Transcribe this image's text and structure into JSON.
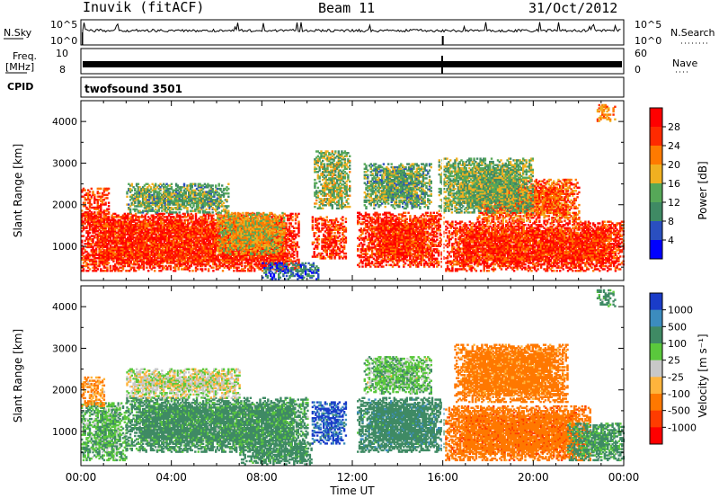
{
  "header": {
    "station": "Inuvik (fitACF)",
    "beam": "Beam 11",
    "date": "31/Oct/2012"
  },
  "noise_panel": {
    "left_label": "N.Sky",
    "right_label": "N.Search",
    "left_ticks": [
      "10^5",
      "10^0"
    ],
    "right_ticks": [
      "10^5",
      "10^0"
    ]
  },
  "freq_panel": {
    "left_label": "Freq.",
    "left_unit": "[MHz]",
    "right_label": "Nave",
    "left_ticks": [
      "10",
      "8"
    ],
    "right_ticks": [
      "60",
      "0"
    ]
  },
  "cpid": {
    "label": "CPID",
    "value": "twofsound 3501"
  },
  "power_panel": {
    "ylabel": "Slant Range [km]",
    "yticks": [
      "1000",
      "2000",
      "3000",
      "4000"
    ],
    "colorbar_label": "Power [dB]",
    "colorbar_ticks": [
      "4",
      "8",
      "12",
      "16",
      "20",
      "24",
      "28"
    ],
    "colorbar_colors": [
      "#0000ff",
      "#2a4fc0",
      "#3f8a64",
      "#56a858",
      "#f0b020",
      "#ff7a00",
      "#ff2a00",
      "#ff0000"
    ]
  },
  "velocity_panel": {
    "ylabel": "Slant Range [km]",
    "yticks": [
      "1000",
      "2000",
      "3000",
      "4000"
    ],
    "colorbar_label": "Velocity [m s⁻¹]",
    "colorbar_ticks": [
      "1000",
      "500",
      "100",
      "25",
      "-25",
      "-100",
      "-500",
      "-1000"
    ],
    "colorbar_colors": [
      "#1a3cc8",
      "#3c8cbe",
      "#3f8a64",
      "#5ac83c",
      "#c8c8c8",
      "#ffb43c",
      "#ff7800",
      "#ff3c00",
      "#ff0000"
    ]
  },
  "x_axis": {
    "ticks": [
      "00:00",
      "04:00",
      "08:00",
      "12:00",
      "16:00",
      "20:00",
      "00:00"
    ],
    "label": "Time UT"
  },
  "chart_data": [
    {
      "type": "heatmap",
      "title": "Power",
      "x_range_hours": [
        0,
        24
      ],
      "y_range_km": [
        180,
        4500
      ],
      "colorbar_range_db": [
        0,
        32
      ],
      "blobs": [
        {
          "t0": 0.0,
          "t1": 9.6,
          "r0": 400,
          "r1": 1800,
          "value": 27
        },
        {
          "t0": 0.0,
          "t1": 1.2,
          "r0": 1500,
          "r1": 2400,
          "value": 26
        },
        {
          "t0": 2.0,
          "t1": 6.5,
          "r0": 1800,
          "r1": 2500,
          "value": 13
        },
        {
          "t0": 6.0,
          "t1": 9.0,
          "r0": 800,
          "r1": 1800,
          "value": 18
        },
        {
          "t0": 8.0,
          "t1": 10.5,
          "r0": 200,
          "r1": 600,
          "value": 7
        },
        {
          "t0": 10.2,
          "t1": 11.7,
          "r0": 700,
          "r1": 1700,
          "value": 27
        },
        {
          "t0": 10.3,
          "t1": 11.9,
          "r0": 1900,
          "r1": 3300,
          "value": 15
        },
        {
          "t0": 12.2,
          "t1": 16.0,
          "r0": 500,
          "r1": 1800,
          "value": 27
        },
        {
          "t0": 12.5,
          "t1": 15.5,
          "r0": 1900,
          "r1": 3000,
          "value": 13
        },
        {
          "t0": 16.1,
          "t1": 24.0,
          "r0": 400,
          "r1": 1600,
          "value": 27
        },
        {
          "t0": 17.5,
          "t1": 22.0,
          "r0": 1600,
          "r1": 2600,
          "value": 24
        },
        {
          "t0": 15.8,
          "t1": 20.0,
          "r0": 1800,
          "r1": 3100,
          "value": 14
        },
        {
          "t0": 22.8,
          "t1": 23.6,
          "r0": 4000,
          "r1": 4400,
          "value": 22
        }
      ]
    },
    {
      "type": "heatmap",
      "title": "Velocity",
      "x_range_hours": [
        0,
        24
      ],
      "y_range_km": [
        180,
        4500
      ],
      "colorbar_range_ms": [
        -1000,
        1000
      ],
      "blobs": [
        {
          "t0": 0.0,
          "t1": 2.0,
          "r0": 300,
          "r1": 1700,
          "value": 80
        },
        {
          "t0": 0.0,
          "t1": 1.0,
          "r0": 1600,
          "r1": 2300,
          "value": -100
        },
        {
          "t0": 2.0,
          "t1": 10.0,
          "r0": 500,
          "r1": 1800,
          "value": 150
        },
        {
          "t0": 2.0,
          "t1": 7.0,
          "r0": 1800,
          "r1": 2500,
          "value": 0
        },
        {
          "t0": 7.0,
          "t1": 10.2,
          "r0": 200,
          "r1": 700,
          "value": 200
        },
        {
          "t0": 10.2,
          "t1": 11.7,
          "r0": 700,
          "r1": 1700,
          "value": 1000
        },
        {
          "t0": 12.2,
          "t1": 16.0,
          "r0": 500,
          "r1": 1800,
          "value": 300
        },
        {
          "t0": 12.5,
          "t1": 15.5,
          "r0": 1900,
          "r1": 2800,
          "value": 60
        },
        {
          "t0": 16.1,
          "t1": 22.5,
          "r0": 300,
          "r1": 1600,
          "value": -300
        },
        {
          "t0": 16.5,
          "t1": 21.5,
          "r0": 1700,
          "r1": 3100,
          "value": -200
        },
        {
          "t0": 21.5,
          "t1": 24.0,
          "r0": 300,
          "r1": 1200,
          "value": 120
        },
        {
          "t0": 22.8,
          "t1": 23.6,
          "r0": 4000,
          "r1": 4400,
          "value": 150
        }
      ]
    }
  ]
}
